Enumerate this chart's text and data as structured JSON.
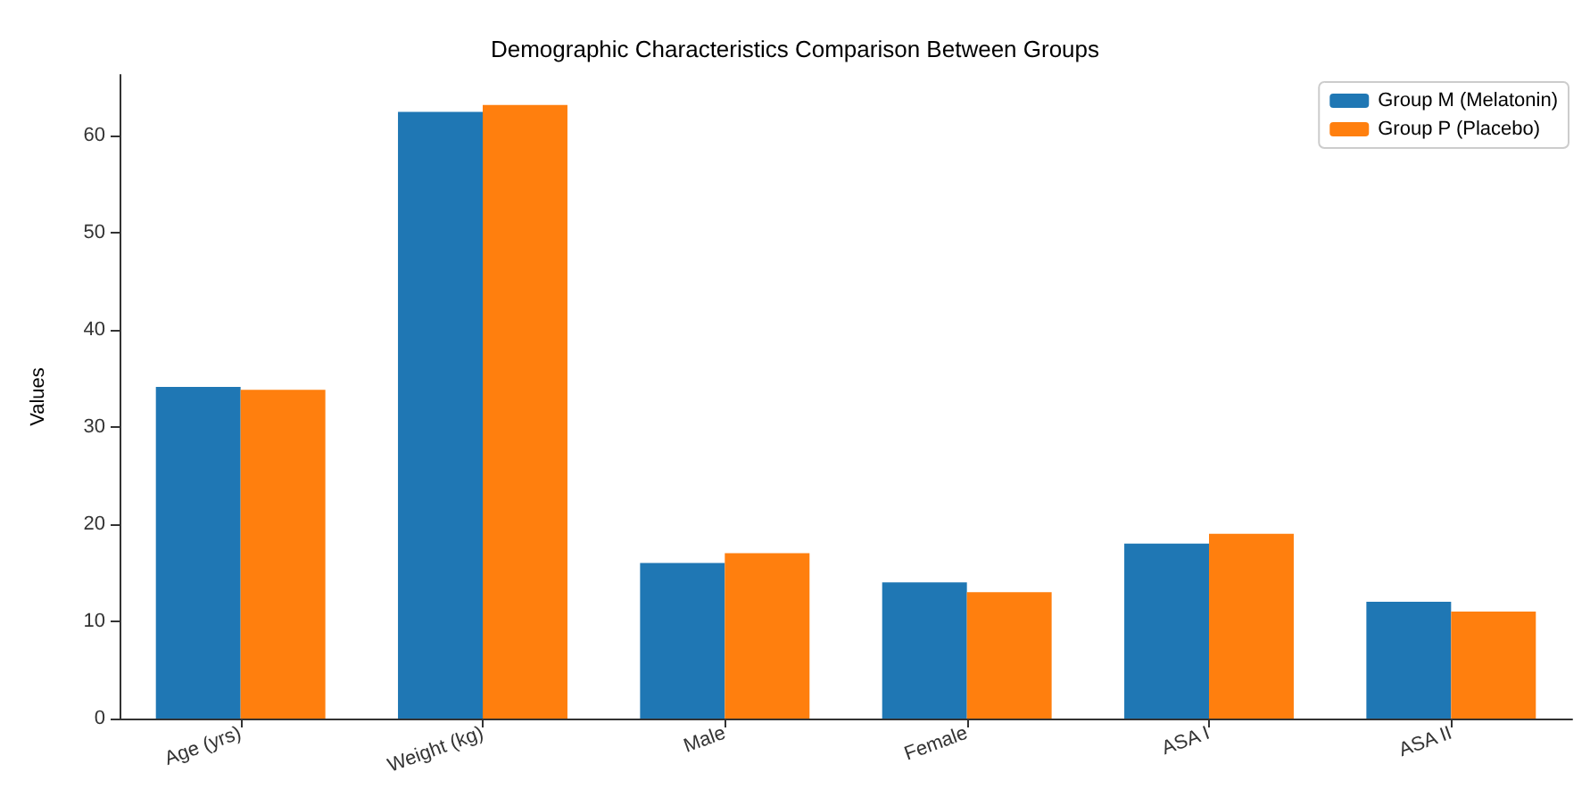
{
  "chart_data": {
    "type": "bar",
    "title": "Demographic Characteristics Comparison Between Groups",
    "ylabel": "Values",
    "categories": [
      "Age (yrs)",
      "Weight (kg)",
      "Male",
      "Female",
      "ASA I",
      "ASA II"
    ],
    "series": [
      {
        "name": "Group M (Melatonin)",
        "color": "#1f77b4",
        "values": [
          34.1,
          62.4,
          16,
          14,
          18,
          12
        ]
      },
      {
        "name": "Group P (Placebo)",
        "color": "#ff7f0e",
        "values": [
          33.8,
          63.1,
          17,
          13,
          19,
          11
        ]
      }
    ],
    "ylim": [
      0,
      66.2
    ],
    "yticks": [
      0,
      10,
      20,
      30,
      40,
      50,
      60
    ],
    "grid": false,
    "legend": "top right"
  }
}
